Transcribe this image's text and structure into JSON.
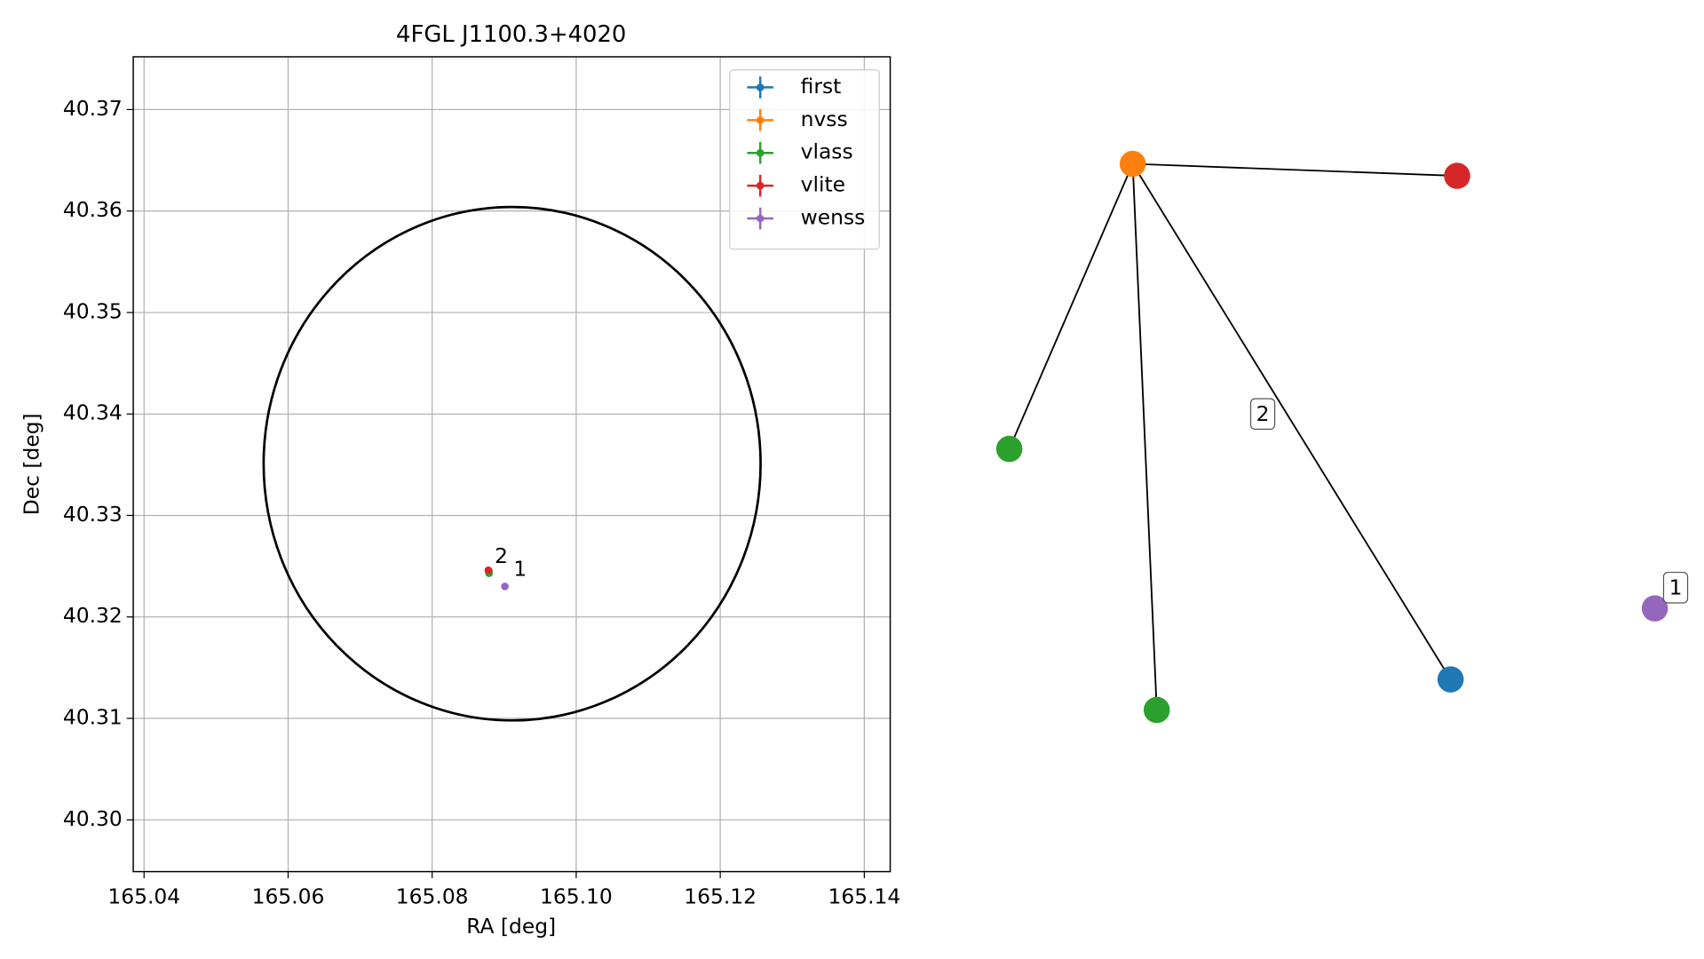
{
  "chart_data": {
    "type": "scatter",
    "title": "4FGL J1100.3+4020",
    "x_label": "RA [deg]",
    "y_label": "Dec [deg]",
    "xlim": [
      165.0385,
      165.1436
    ],
    "ylim": [
      40.2949,
      40.3752
    ],
    "xticks": [
      165.04,
      165.06,
      165.08,
      {
        "value": 165.1,
        "label": "165.10"
      },
      165.12,
      165.14
    ],
    "yticks": [
      {
        "value": 40.3,
        "label": "40.30"
      },
      40.31,
      40.32,
      40.33,
      40.34,
      40.35,
      40.36,
      40.37
    ],
    "grid": true,
    "legend": "upper right",
    "series": [
      {
        "name": "first",
        "color": "#1f77b4",
        "x": [
          165.0879
        ],
        "values": [
          40.3245
        ]
      },
      {
        "name": "nvss",
        "color": "#ff7f0e",
        "x": [
          165.0879
        ],
        "values": [
          40.3245
        ]
      },
      {
        "name": "vlass",
        "color": "#2ca02c",
        "x": [
          165.0879
        ],
        "values": [
          40.3243
        ]
      },
      {
        "name": "vlite",
        "color": "#d62728",
        "x": [
          165.0878
        ],
        "values": [
          40.3246
        ]
      },
      {
        "name": "wenss",
        "color": "#9467bd",
        "x": [
          165.0901
        ],
        "values": [
          40.323
        ]
      }
    ],
    "circle": {
      "center": [
        165.0911,
        40.3351
      ],
      "radius": [
        0.0345,
        0.0253
      ],
      "color": "#000000"
    },
    "annotations": [
      {
        "text": "2",
        "x": 165.0896,
        "y": 40.3259
      },
      {
        "text": "1",
        "x": 165.0922,
        "y": 40.3246
      }
    ]
  },
  "graph": {
    "nodes": [
      {
        "color": "#ff7f0e"
      },
      {
        "color": "#d62728"
      },
      {
        "color": "#2ca02c"
      },
      {
        "color": "#2ca02c"
      },
      {
        "color": "#1f77b4"
      },
      {
        "color": "#9467bd"
      }
    ],
    "edges": [
      [
        0,
        1
      ],
      [
        0,
        2
      ],
      [
        0,
        3
      ],
      [
        0,
        4
      ]
    ],
    "labels": [
      "2",
      "1"
    ]
  }
}
